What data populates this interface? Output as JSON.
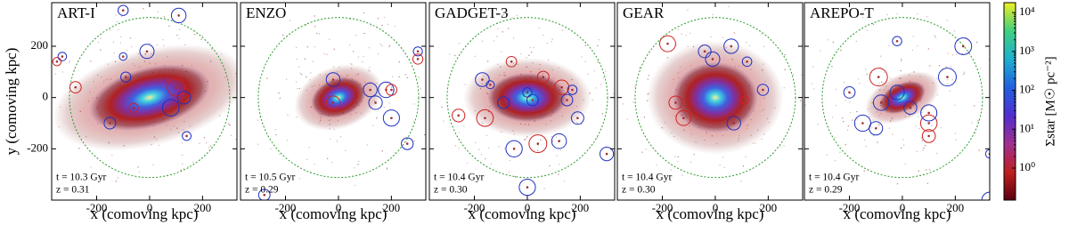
{
  "ylabel": "y (comoving kpc)",
  "chart_data": [
    {
      "type": "image",
      "title": "ART-I",
      "annotations": [
        "t = 10.3 Gyr",
        "z = 0.31"
      ],
      "xlabel": "x (comoving kpc)",
      "xlim": [
        -370,
        330
      ],
      "xticks": [
        -200,
        0,
        200
      ],
      "ylim": [
        -400,
        370
      ],
      "yticks": [
        -200,
        0,
        200
      ]
    },
    {
      "type": "image",
      "title": "ENZO",
      "annotations": [
        "t = 10.5 Gyr",
        "z = 0.29"
      ],
      "xlabel": "x (comoving kpc)",
      "xlim": [
        -370,
        330
      ],
      "xticks": [
        -200,
        0,
        200
      ],
      "ylim": [
        -400,
        370
      ],
      "yticks": [
        -200,
        0,
        200
      ]
    },
    {
      "type": "image",
      "title": "GADGET-3",
      "annotations": [
        "t = 10.4 Gyr",
        "z = 0.30"
      ],
      "xlabel": "x (comoving kpc)",
      "xlim": [
        -370,
        330
      ],
      "xticks": [
        -200,
        0,
        200
      ],
      "ylim": [
        -400,
        370
      ],
      "yticks": [
        -200,
        0,
        200
      ]
    },
    {
      "type": "image",
      "title": "GEAR",
      "annotations": [
        "t = 10.4 Gyr",
        "z = 0.30"
      ],
      "xlabel": "x (comoving kpc)",
      "xlim": [
        -370,
        330
      ],
      "xticks": [
        -200,
        0,
        200
      ],
      "ylim": [
        -400,
        370
      ],
      "yticks": [
        -200,
        0,
        200
      ]
    },
    {
      "type": "image",
      "title": "AREPO-T",
      "annotations": [
        "t = 10.4 Gyr",
        "z = 0.29"
      ],
      "xlabel": "x (comoving kpc)",
      "xlim": [
        -370,
        330
      ],
      "xticks": [
        -200,
        0,
        200
      ],
      "ylim": [
        -400,
        370
      ],
      "yticks": [
        -200,
        0,
        200
      ]
    }
  ],
  "colorbar": {
    "label": "Σstar [M☉ pc⁻²]",
    "scale": "log",
    "lim": [
      0.15,
      18000
    ],
    "ticks": [
      {
        "value": 1,
        "label": "10⁰"
      },
      {
        "value": 10,
        "label": "10¹"
      },
      {
        "value": 100,
        "label": "10²"
      },
      {
        "value": 1000,
        "label": "10³"
      },
      {
        "value": 10000,
        "label": "10⁴"
      }
    ],
    "colors": [
      "#5a0010",
      "#c02020",
      "#a03090",
      "#5030d0",
      "#2060e0",
      "#20b0d0",
      "#40d080",
      "#f0f020"
    ]
  }
}
